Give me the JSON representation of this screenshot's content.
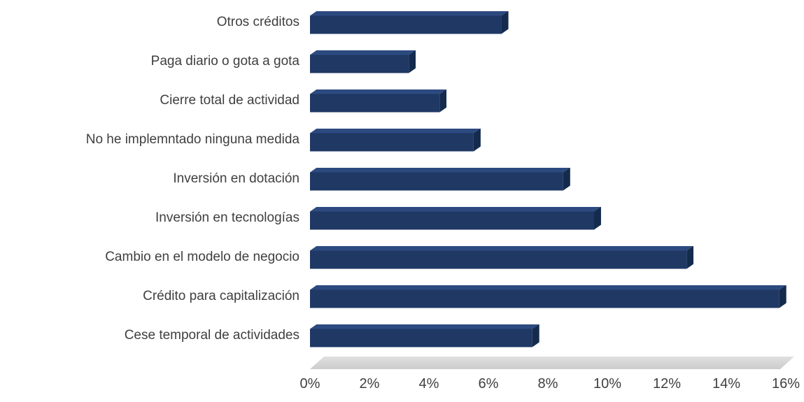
{
  "chart_data": {
    "type": "bar",
    "orientation": "horizontal",
    "style": "3d-bar",
    "title": "",
    "xlabel": "",
    "ylabel": "",
    "unit": "%",
    "categories": [
      "Otros créditos",
      "Paga diario o gota a gota",
      "Cierre total de actividad",
      "No he implemntado ninguna medida",
      "Inversión en dotación",
      "Inversión en tecnologías",
      "Cambio en el modelo de negocio",
      "Crédito para capitalización",
      "Cese temporal de actividades"
    ],
    "values": [
      6.2,
      3.2,
      4.2,
      5.3,
      8.2,
      9.2,
      12.2,
      15.2,
      7.2
    ],
    "xlim": [
      0,
      16
    ],
    "x_tick_values": [
      0,
      2,
      4,
      6,
      8,
      10,
      12,
      14,
      16
    ],
    "x_tick_labels": [
      "0%",
      "2%",
      "4%",
      "6%",
      "8%",
      "10%",
      "12%",
      "14%",
      "16%"
    ],
    "grid": false,
    "legend": "none",
    "colors": {
      "bar_front": "#1f3864",
      "bar_top": "#2d4a80",
      "bar_side": "#142b4d",
      "floor": "#d6d6d6",
      "text": "#3f3f3f"
    }
  }
}
